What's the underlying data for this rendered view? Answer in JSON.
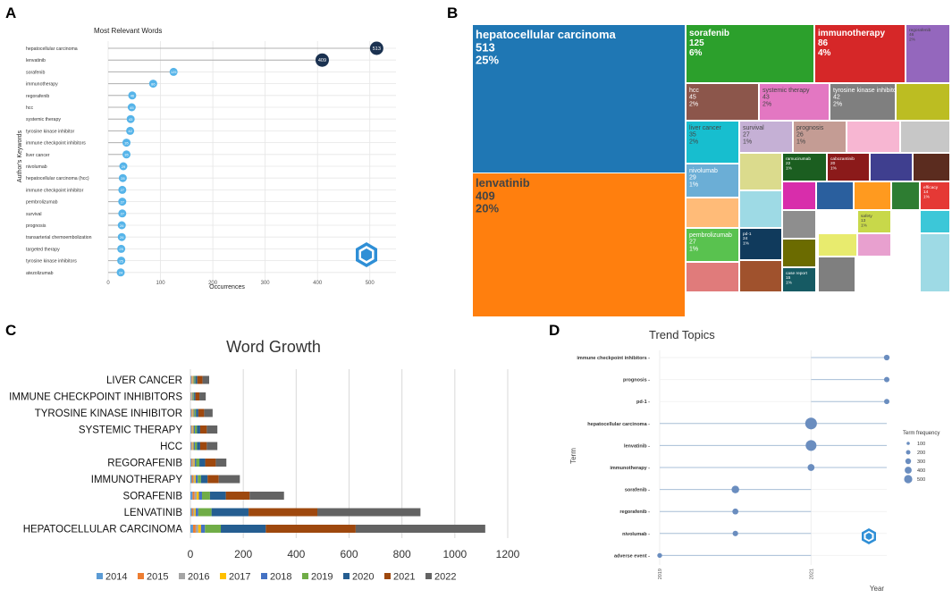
{
  "panel_letters": {
    "a": "A",
    "b": "B",
    "c": "C",
    "d": "D"
  },
  "colors": {
    "lollipop_line": "#b0b0b0",
    "lollipop_light": "#56b4e9",
    "lollipop_dark": "#1a3150",
    "grid": "#e6e6e6",
    "trend_line": "#a9bfd8",
    "trend_dot": "#6a8dbf"
  },
  "chart_data": [
    {
      "id": "A",
      "type": "scatter",
      "title": "Most Relevant Words",
      "xlabel": "Occurrences",
      "ylabel": "Author's Keywords",
      "xlim": [
        0,
        550
      ],
      "xticks": [
        0,
        100,
        200,
        300,
        400,
        500
      ],
      "grid": true,
      "categories": [
        "hepatocellular carcinoma",
        "lenvatinib",
        "sorafenib",
        "immunotherapy",
        "regorafenib",
        "hcc",
        "systemic therapy",
        "tyrosine kinase inhibitor",
        "immune checkpoint inhibitors",
        "liver cancer",
        "nivolumab",
        "hepatocellular carcinoma (hcc)",
        "immune checkpoint inhibitor",
        "pembrolizumab",
        "survival",
        "prognosis",
        "transarterial chemoembolization",
        "targeted therapy",
        "tyrosine kinase inhibitors",
        "atezolizumab"
      ],
      "values": [
        513,
        409,
        125,
        86,
        46,
        45,
        43,
        42,
        35,
        35,
        29,
        28,
        27,
        27,
        27,
        26,
        26,
        25,
        25,
        24
      ]
    },
    {
      "id": "B",
      "type": "heatmap",
      "subtype": "treemap",
      "title": "",
      "items": [
        {
          "label": "hepatocellular carcinoma",
          "value": 513,
          "pct": "25%",
          "color": "#1f77b4"
        },
        {
          "label": "lenvatinib",
          "value": 409,
          "pct": "20%",
          "color": "#ff7f0e"
        },
        {
          "label": "sorafenib",
          "value": 125,
          "pct": "6%",
          "color": "#2ca02c"
        },
        {
          "label": "immunotherapy",
          "value": 86,
          "pct": "4%",
          "color": "#d62728"
        },
        {
          "label": "regorafenib",
          "value": 46,
          "pct": "2%",
          "color": "#9467bd"
        },
        {
          "label": "hcc",
          "value": 45,
          "pct": "2%",
          "color": "#8c564b"
        },
        {
          "label": "systemic therapy",
          "value": 43,
          "pct": "2%",
          "color": "#e377c2"
        },
        {
          "label": "tyrosine kinase inhibitor",
          "value": 42,
          "pct": "2%",
          "color": "#7f7f7f"
        },
        {
          "label": "",
          "value": null,
          "pct": "",
          "color": "#bcbd22"
        },
        {
          "label": "liver cancer",
          "value": 35,
          "pct": "2%",
          "color": "#17becf"
        },
        {
          "label": "survival",
          "value": 27,
          "pct": "1%",
          "color": "#c5b0d5"
        },
        {
          "label": "prognosis",
          "value": 26,
          "pct": "1%",
          "color": "#c49c94"
        },
        {
          "label": "",
          "value": null,
          "pct": "",
          "color": "#f7b6d2"
        },
        {
          "label": "",
          "value": null,
          "pct": "",
          "color": "#c7c7c7"
        },
        {
          "label": "nivolumab",
          "value": 29,
          "pct": "1%",
          "color": "#6baed6"
        },
        {
          "label": "",
          "value": null,
          "pct": "",
          "color": "#dbdb8d"
        },
        {
          "label": "ramucirumab",
          "value": 22,
          "pct": "1%",
          "color": "#1b5e20"
        },
        {
          "label": "cabozantinib",
          "value": 20,
          "pct": "1%",
          "color": "#8b1a1a"
        },
        {
          "label": "",
          "value": null,
          "pct": "",
          "color": "#3f3f8f"
        },
        {
          "label": "",
          "value": null,
          "pct": "",
          "color": "#5b2c1f"
        },
        {
          "label": "",
          "value": null,
          "pct": "",
          "color": "#9edae5"
        },
        {
          "label": "",
          "value": null,
          "pct": "",
          "color": "#d82dab"
        },
        {
          "label": "",
          "value": null,
          "pct": "",
          "color": "#2a5f9e"
        },
        {
          "label": "",
          "value": null,
          "pct": "",
          "color": "#ff9a1f"
        },
        {
          "label": "",
          "value": null,
          "pct": "",
          "color": "#2e7d32"
        },
        {
          "label": "efficacy",
          "value": 14,
          "pct": "1%",
          "color": "#e53935"
        },
        {
          "label": "",
          "value": null,
          "pct": "",
          "color": "#ffbb78"
        },
        {
          "label": "",
          "value": null,
          "pct": "",
          "color": "#8e8e8e"
        },
        {
          "label": "safety",
          "value": 13,
          "pct": "1%",
          "color": "#c8d84a"
        },
        {
          "label": "",
          "value": null,
          "pct": "",
          "color": "#3cc7d8"
        },
        {
          "label": "pembrolizumab",
          "value": 27,
          "pct": "1%",
          "color": "#59c24f"
        },
        {
          "label": "pd-1",
          "value": 24,
          "pct": "1%",
          "color": "#103a5c"
        },
        {
          "label": "",
          "value": null,
          "pct": "",
          "color": "#6b6b00"
        },
        {
          "label": "",
          "value": null,
          "pct": "",
          "color": "#a0522d"
        },
        {
          "label": "",
          "value": null,
          "pct": "",
          "color": "#e8eb6e"
        },
        {
          "label": "",
          "value": null,
          "pct": "",
          "color": "#e8a0cf"
        },
        {
          "label": "",
          "value": null,
          "pct": "",
          "color": "#e07b7b"
        },
        {
          "label": "case report",
          "value": 15,
          "pct": "1%",
          "color": "#165a63"
        },
        {
          "label": "",
          "value": null,
          "pct": "",
          "color": "#7f7f7f"
        },
        {
          "label": "",
          "value": null,
          "pct": "",
          "color": "#9edae5"
        }
      ]
    },
    {
      "id": "C",
      "type": "bar",
      "orientation": "horizontal",
      "stacked": true,
      "title": "Word Growth",
      "xlim": [
        0,
        1200
      ],
      "xticks": [
        0,
        200,
        400,
        600,
        800,
        1000,
        1200
      ],
      "categories": [
        "LIVER CANCER",
        "IMMUNE CHECKPOINT INHIBITORS",
        "TYROSINE KINASE INHIBITOR",
        "SYSTEMIC THERAPY",
        "HCC",
        "REGORAFENIB",
        "IMMUNOTHERAPY",
        "SORAFENIB",
        "LENVATINIB",
        "HEPATOCELLULAR CARCINOMA"
      ],
      "series": [
        {
          "name": "2014",
          "color": "#5b9bd5",
          "values": [
            3,
            2,
            3,
            3,
            3,
            4,
            5,
            8,
            5,
            10
          ]
        },
        {
          "name": "2015",
          "color": "#ed7d31",
          "values": [
            3,
            2,
            3,
            3,
            3,
            4,
            5,
            8,
            5,
            10
          ]
        },
        {
          "name": "2016",
          "color": "#a5a5a5",
          "values": [
            3,
            2,
            3,
            3,
            3,
            4,
            5,
            8,
            5,
            10
          ]
        },
        {
          "name": "2017",
          "color": "#ffc000",
          "values": [
            3,
            2,
            3,
            3,
            3,
            4,
            5,
            8,
            5,
            10
          ]
        },
        {
          "name": "2018",
          "color": "#4472c4",
          "values": [
            3,
            3,
            4,
            5,
            5,
            6,
            8,
            12,
            10,
            15
          ]
        },
        {
          "name": "2019",
          "color": "#70ad47",
          "values": [
            4,
            3,
            5,
            8,
            8,
            12,
            12,
            30,
            50,
            60
          ]
        },
        {
          "name": "2020",
          "color": "#255e91",
          "values": [
            7,
            5,
            9,
            12,
            12,
            22,
            25,
            60,
            140,
            170
          ]
        },
        {
          "name": "2021",
          "color": "#9e480e",
          "values": [
            20,
            15,
            22,
            25,
            25,
            40,
            42,
            90,
            260,
            340
          ]
        },
        {
          "name": "2022",
          "color": "#636363",
          "values": [
            25,
            24,
            32,
            40,
            40,
            40,
            80,
            130,
            390,
            490
          ]
        }
      ]
    },
    {
      "id": "D",
      "type": "scatter",
      "title": "Trend Topics",
      "xlabel": "Year",
      "ylabel": "Term",
      "xlim": [
        2018.9,
        2023.2
      ],
      "xticks": [
        2019,
        2021
      ],
      "terms": [
        "immune checkpoint inhibitors",
        "prognosis",
        "pd-1",
        "hepatocellular carcinoma",
        "lenvatinib",
        "immunotherapy",
        "sorafenib",
        "regorafenib",
        "nivolumab",
        "adverse event"
      ],
      "q1": [
        2021,
        2021,
        2021,
        2019,
        2019,
        2019,
        2019,
        2019,
        2019,
        2019
      ],
      "median": [
        2022,
        2022,
        2022,
        2021,
        2021,
        2021,
        2020,
        2020,
        2020,
        2019
      ],
      "q3": [
        2022,
        2022,
        2022,
        2022,
        2022,
        2022,
        2021,
        2021,
        2021,
        2021
      ],
      "freq": [
        35,
        26,
        24,
        513,
        409,
        86,
        125,
        46,
        29,
        12
      ],
      "legend_title": "Term frequency",
      "legend_values": [
        100,
        200,
        300,
        400,
        500
      ]
    }
  ]
}
